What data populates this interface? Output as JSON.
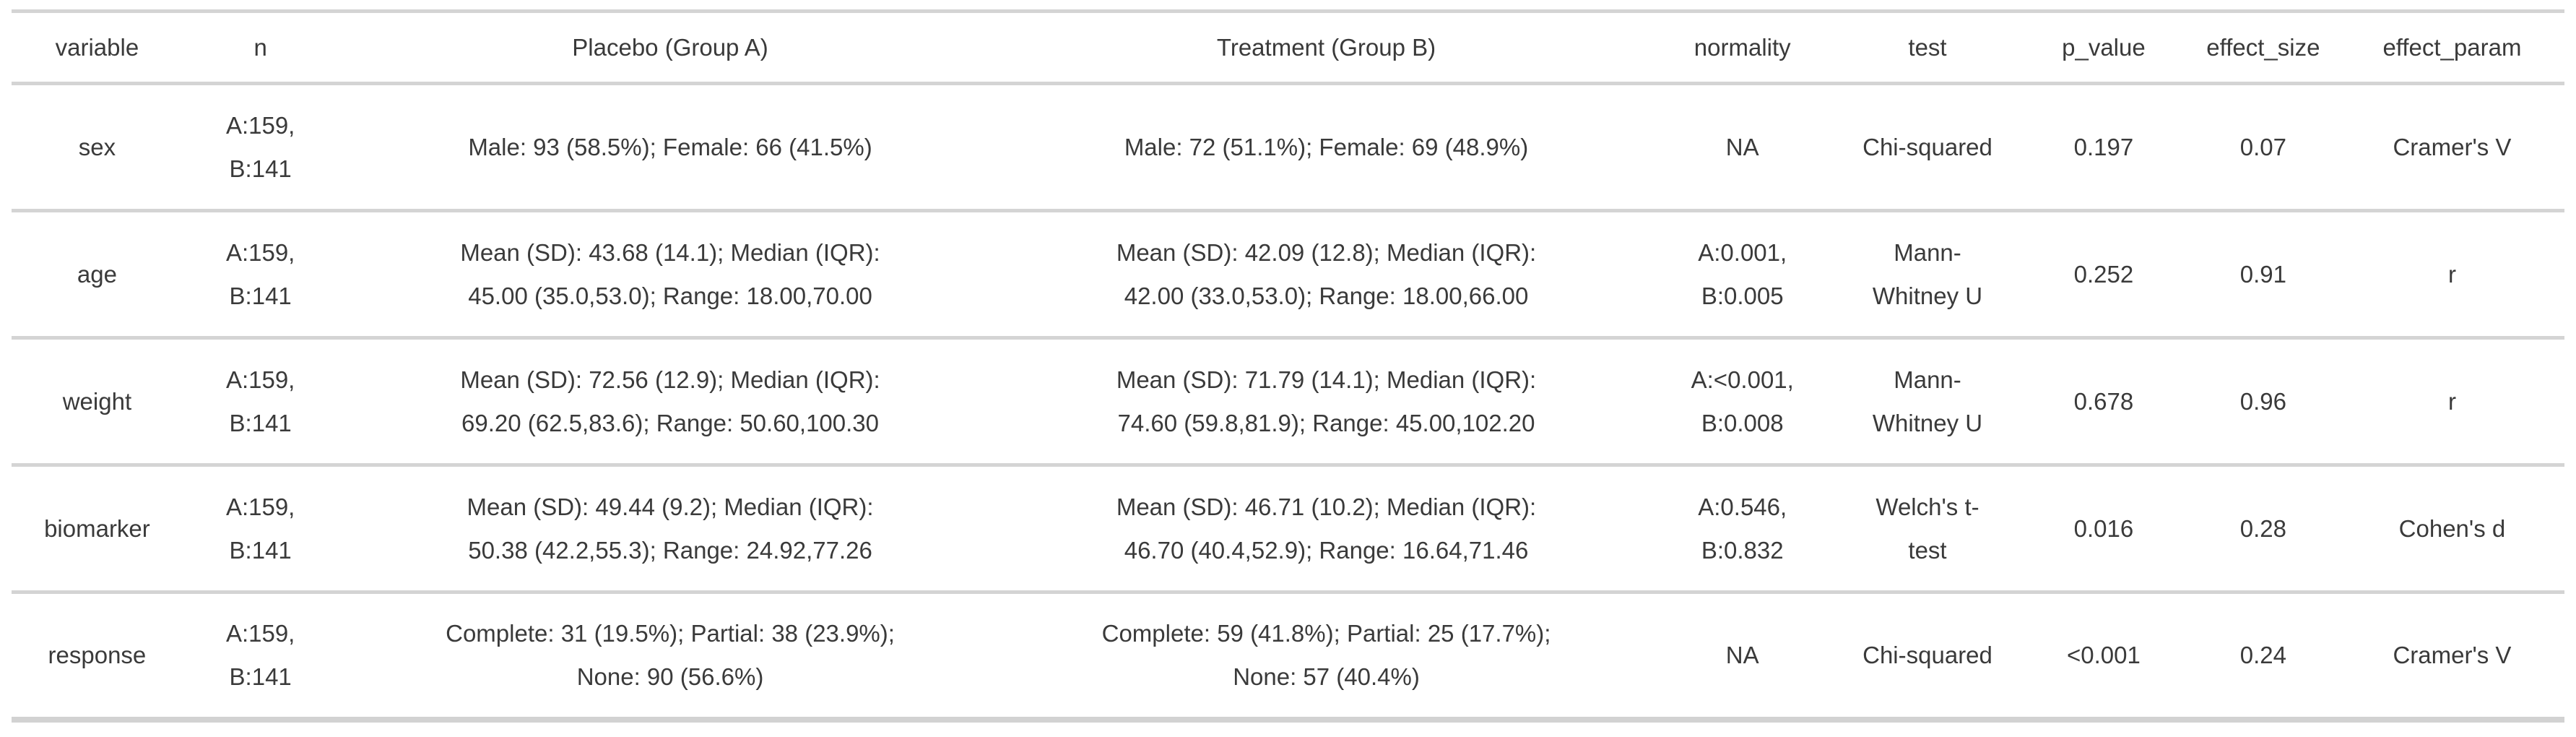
{
  "colors": {
    "background": "#ffffff",
    "border": "#d4d4d4",
    "text": "#3a3a3a"
  },
  "table": {
    "columns": [
      {
        "key": "variable",
        "label": "variable"
      },
      {
        "key": "n",
        "label": "n"
      },
      {
        "key": "group_a",
        "label": "Placebo (Group A)"
      },
      {
        "key": "group_b",
        "label": "Treatment (Group B)"
      },
      {
        "key": "normality",
        "label": "normality"
      },
      {
        "key": "test",
        "label": "test"
      },
      {
        "key": "p_value",
        "label": "p_value"
      },
      {
        "key": "effect_size",
        "label": "effect_size"
      },
      {
        "key": "effect_param",
        "label": "effect_param"
      }
    ],
    "rows": [
      {
        "variable": "sex",
        "n": "A:159,\nB:141",
        "group_a": "Male: 93 (58.5%); Female: 66 (41.5%)",
        "group_b": "Male: 72 (51.1%); Female: 69 (48.9%)",
        "normality": "NA",
        "test": "Chi-squared",
        "p_value": "0.197",
        "effect_size": "0.07",
        "effect_param": "Cramer's V"
      },
      {
        "variable": "age",
        "n": "A:159,\nB:141",
        "group_a": "Mean (SD): 43.68 (14.1); Median (IQR):\n45.00 (35.0,53.0); Range: 18.00,70.00",
        "group_b": "Mean (SD): 42.09 (12.8); Median (IQR):\n42.00 (33.0,53.0); Range: 18.00,66.00",
        "normality": "A:0.001,\nB:0.005",
        "test": "Mann-\nWhitney U",
        "p_value": "0.252",
        "effect_size": "0.91",
        "effect_param": "r"
      },
      {
        "variable": "weight",
        "n": "A:159,\nB:141",
        "group_a": "Mean (SD): 72.56 (12.9); Median (IQR):\n69.20 (62.5,83.6); Range: 50.60,100.30",
        "group_b": "Mean (SD): 71.79 (14.1); Median (IQR):\n74.60 (59.8,81.9); Range: 45.00,102.20",
        "normality": "A:<0.001,\nB:0.008",
        "test": "Mann-\nWhitney U",
        "p_value": "0.678",
        "effect_size": "0.96",
        "effect_param": "r"
      },
      {
        "variable": "biomarker",
        "n": "A:159,\nB:141",
        "group_a": "Mean (SD): 49.44 (9.2); Median (IQR):\n50.38 (42.2,55.3); Range: 24.92,77.26",
        "group_b": "Mean (SD): 46.71 (10.2); Median (IQR):\n46.70 (40.4,52.9); Range: 16.64,71.46",
        "normality": "A:0.546,\nB:0.832",
        "test": "Welch's t-\ntest",
        "p_value": "0.016",
        "effect_size": "0.28",
        "effect_param": "Cohen's d"
      },
      {
        "variable": "response",
        "n": "A:159,\nB:141",
        "group_a": "Complete: 31 (19.5%); Partial: 38 (23.9%);\nNone: 90 (56.6%)",
        "group_b": "Complete: 59 (41.8%); Partial: 25 (17.7%);\nNone: 57 (40.4%)",
        "normality": "NA",
        "test": "Chi-squared",
        "p_value": "<0.001",
        "effect_size": "0.24",
        "effect_param": "Cramer's V"
      }
    ]
  },
  "chart_data": {
    "type": "table",
    "title": "",
    "columns": [
      "variable",
      "n",
      "Placebo (Group A)",
      "Treatment (Group B)",
      "normality",
      "test",
      "p_value",
      "effect_size",
      "effect_param"
    ],
    "rows": [
      [
        "sex",
        "A:159, B:141",
        "Male: 93 (58.5%); Female: 66 (41.5%)",
        "Male: 72 (51.1%); Female: 69 (48.9%)",
        "NA",
        "Chi-squared",
        "0.197",
        "0.07",
        "Cramer's V"
      ],
      [
        "age",
        "A:159, B:141",
        "Mean (SD): 43.68 (14.1); Median (IQR): 45.00 (35.0,53.0); Range: 18.00,70.00",
        "Mean (SD): 42.09 (12.8); Median (IQR): 42.00 (33.0,53.0); Range: 18.00,66.00",
        "A:0.001, B:0.005",
        "Mann-Whitney U",
        "0.252",
        "0.91",
        "r"
      ],
      [
        "weight",
        "A:159, B:141",
        "Mean (SD): 72.56 (12.9); Median (IQR): 69.20 (62.5,83.6); Range: 50.60,100.30",
        "Mean (SD): 71.79 (14.1); Median (IQR): 74.60 (59.8,81.9); Range: 45.00,102.20",
        "A:<0.001, B:0.008",
        "Mann-Whitney U",
        "0.678",
        "0.96",
        "r"
      ],
      [
        "biomarker",
        "A:159, B:141",
        "Mean (SD): 49.44 (9.2); Median (IQR): 50.38 (42.2,55.3); Range: 24.92,77.26",
        "Mean (SD): 46.71 (10.2); Median (IQR): 46.70 (40.4,52.9); Range: 16.64,71.46",
        "A:0.546, B:0.832",
        "Welch's t-test",
        "0.016",
        "0.28",
        "Cohen's d"
      ],
      [
        "response",
        "A:159, B:141",
        "Complete: 31 (19.5%); Partial: 38 (23.9%); None: 90 (56.6%)",
        "Complete: 59 (41.8%); Partial: 25 (17.7%); None: 57 (40.4%)",
        "NA",
        "Chi-squared",
        "<0.001",
        "0.24",
        "Cramer's V"
      ]
    ]
  }
}
